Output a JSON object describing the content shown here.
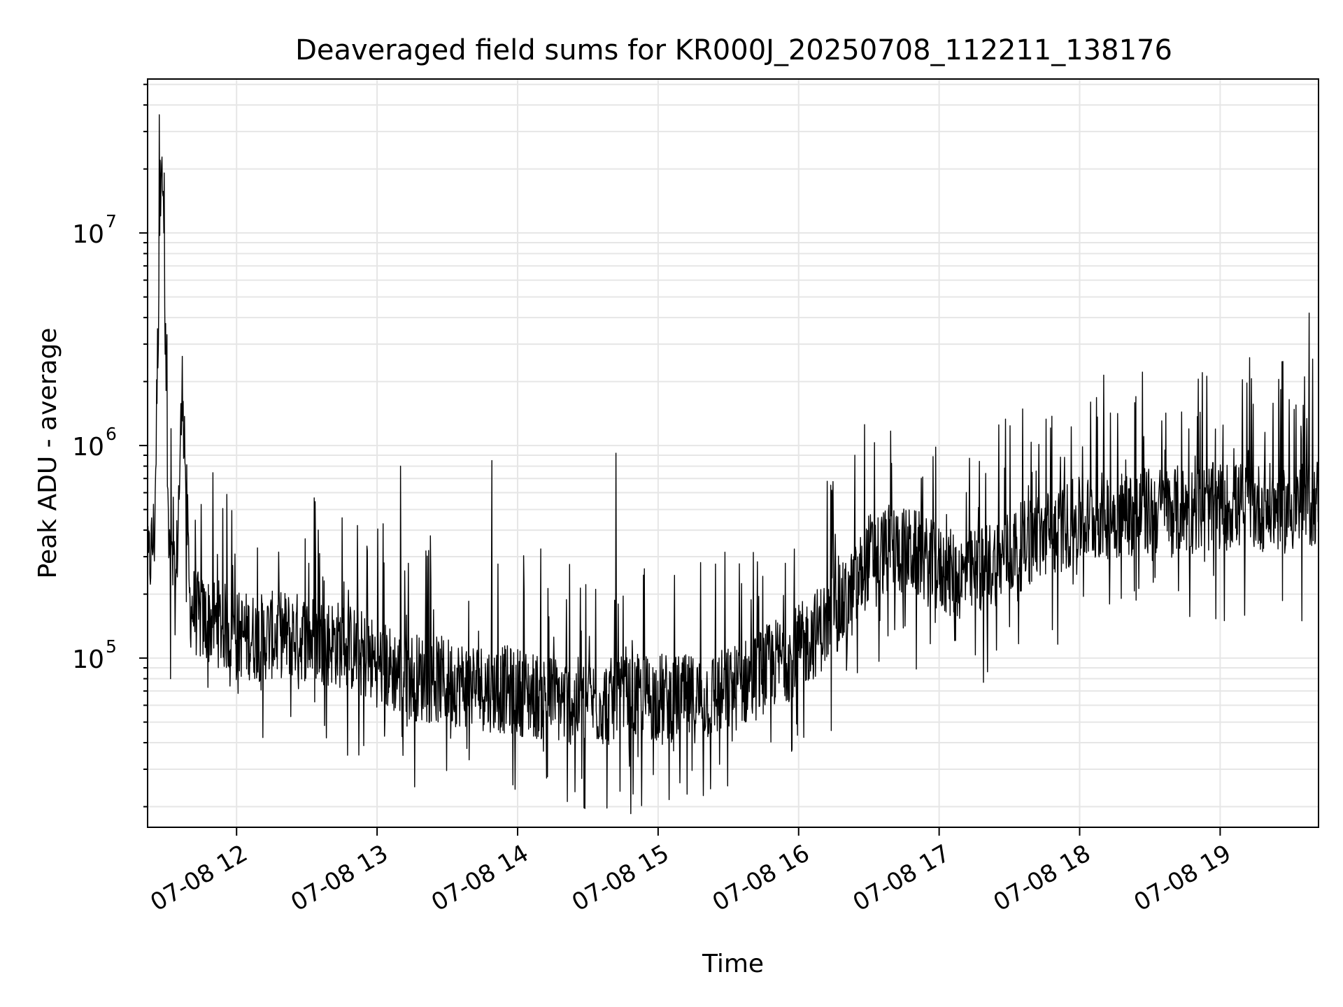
{
  "chart_data": {
    "type": "line",
    "title": "Deaveraged field sums for KR000J_20250708_112211_138176",
    "xlabel": "Time",
    "ylabel": "Peak ADU - average",
    "x_axis": {
      "kind": "datetime",
      "range": [
        "07-08 11:22",
        "07-08 19:42"
      ],
      "ticks": [
        {
          "label": "07-08 12",
          "value": "07-08 12:00"
        },
        {
          "label": "07-08 13",
          "value": "07-08 13:00"
        },
        {
          "label": "07-08 14",
          "value": "07-08 14:00"
        },
        {
          "label": "07-08 15",
          "value": "07-08 15:00"
        },
        {
          "label": "07-08 16",
          "value": "07-08 16:00"
        },
        {
          "label": "07-08 17",
          "value": "07-08 17:00"
        },
        {
          "label": "07-08 18",
          "value": "07-08 18:00"
        },
        {
          "label": "07-08 19",
          "value": "07-08 19:00"
        }
      ]
    },
    "y_axis": {
      "scale": "log",
      "range": [
        16000,
        53000000
      ],
      "ticks": [
        {
          "label": "10",
          "exponent": "5",
          "value": 100000
        },
        {
          "label": "10",
          "exponent": "6",
          "value": 1000000
        },
        {
          "label": "10",
          "exponent": "7",
          "value": 10000000
        }
      ]
    },
    "grid": true,
    "line_color": "#000000",
    "series": [
      {
        "values_description_free": true,
        "x": [
          "11:22",
          "11:25",
          "11:28",
          "11:31",
          "11:34",
          "11:37",
          "11:40",
          "11:45",
          "11:50",
          "11:55",
          "12:00",
          "12:10",
          "12:20",
          "12:30",
          "12:40",
          "12:50",
          "13:00",
          "13:10",
          "13:20",
          "13:30",
          "13:40",
          "13:50",
          "14:00",
          "14:10",
          "14:20",
          "14:30",
          "14:40",
          "14:50",
          "15:00",
          "15:10",
          "15:20",
          "15:30",
          "15:40",
          "15:50",
          "16:00",
          "16:10",
          "16:20",
          "16:25",
          "16:30",
          "16:40",
          "16:50",
          "17:00",
          "17:10",
          "17:20",
          "17:30",
          "17:40",
          "17:50",
          "18:00",
          "18:10",
          "18:20",
          "18:30",
          "18:40",
          "18:50",
          "19:00",
          "19:10",
          "19:20",
          "19:30",
          "19:40",
          "19:42"
        ],
        "y": [
          250000,
          400000,
          36000000,
          300000,
          200000,
          2100000,
          180000,
          150000,
          150000,
          140000,
          130000,
          125000,
          130000,
          125000,
          120000,
          110000,
          95000,
          85000,
          80000,
          78000,
          75000,
          72000,
          70000,
          66000,
          63000,
          62000,
          62000,
          64000,
          66000,
          64000,
          65000,
          70000,
          80000,
          95000,
          110000,
          140000,
          180000,
          220000,
          300000,
          330000,
          310000,
          260000,
          240000,
          270000,
          310000,
          360000,
          400000,
          440000,
          470000,
          480000,
          490000,
          500000,
          500000,
          520000,
          520000,
          510000,
          500000,
          540000,
          560000
        ],
        "spikes": [
          {
            "x": "11:27",
            "y": 36000000
          },
          {
            "x": "11:30",
            "y": 2100000
          },
          {
            "x": "11:32",
            "y": 1200000
          },
          {
            "x": "13:10",
            "y": 800000
          },
          {
            "x": "13:49",
            "y": 850000
          },
          {
            "x": "14:42",
            "y": 920000
          },
          {
            "x": "16:24",
            "y": 900000
          },
          {
            "x": "18:24",
            "y": 1700000
          },
          {
            "x": "19:25",
            "y": 2050000
          },
          {
            "x": "19:38",
            "y": 4200000
          }
        ]
      }
    ]
  }
}
